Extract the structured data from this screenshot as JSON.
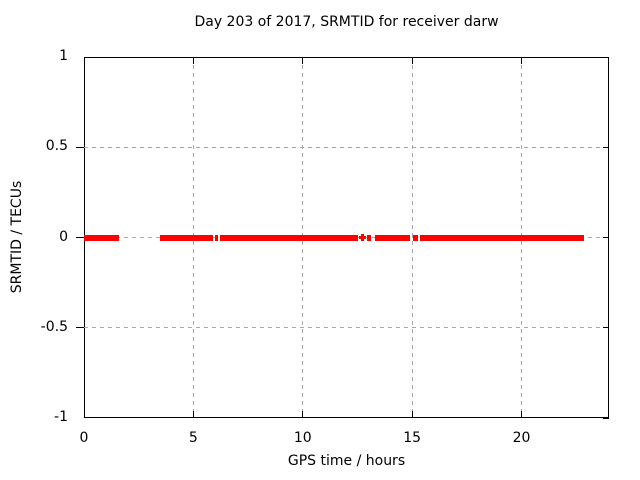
{
  "window": {
    "title": "gnuplot chart"
  },
  "chart_data": {
    "type": "line",
    "title": "Day 203 of 2017, SRMTID for receiver darw",
    "xlabel": "GPS time / hours",
    "ylabel": "SRMTID / TECUs",
    "xlim": [
      0,
      24
    ],
    "ylim": [
      -1,
      1
    ],
    "grid": true,
    "legend": "none",
    "xtick_values": [
      0,
      5,
      10,
      15,
      20
    ],
    "xtick_labels": [
      "0",
      "5",
      "10",
      "15",
      "20"
    ],
    "ytick_values": [
      1,
      0.5,
      0,
      -0.5,
      -1
    ],
    "ytick_labels": [
      "1",
      "0.5",
      "0",
      "-0.5",
      "-1"
    ],
    "grid_xtick_values": [
      5,
      10,
      15,
      20
    ],
    "grid_ytick_values": [
      0.5,
      0,
      -0.5
    ],
    "colors": {
      "series": "#ff0000",
      "grid": "#a8a8a8",
      "axis": "#000000"
    },
    "series": [
      {
        "name": "SRMTID",
        "y_value": 0,
        "style": "dense plus markers merging into thick segments",
        "segments_hours": [
          [
            0.0,
            1.62
          ],
          [
            3.47,
            5.9
          ],
          [
            5.99,
            6.13
          ],
          [
            6.22,
            12.53
          ],
          [
            12.94,
            13.12
          ],
          [
            13.28,
            14.9
          ],
          [
            15.04,
            15.25
          ],
          [
            15.36,
            22.86
          ]
        ],
        "isolated_points_hours": [
          12.73
        ]
      }
    ]
  }
}
